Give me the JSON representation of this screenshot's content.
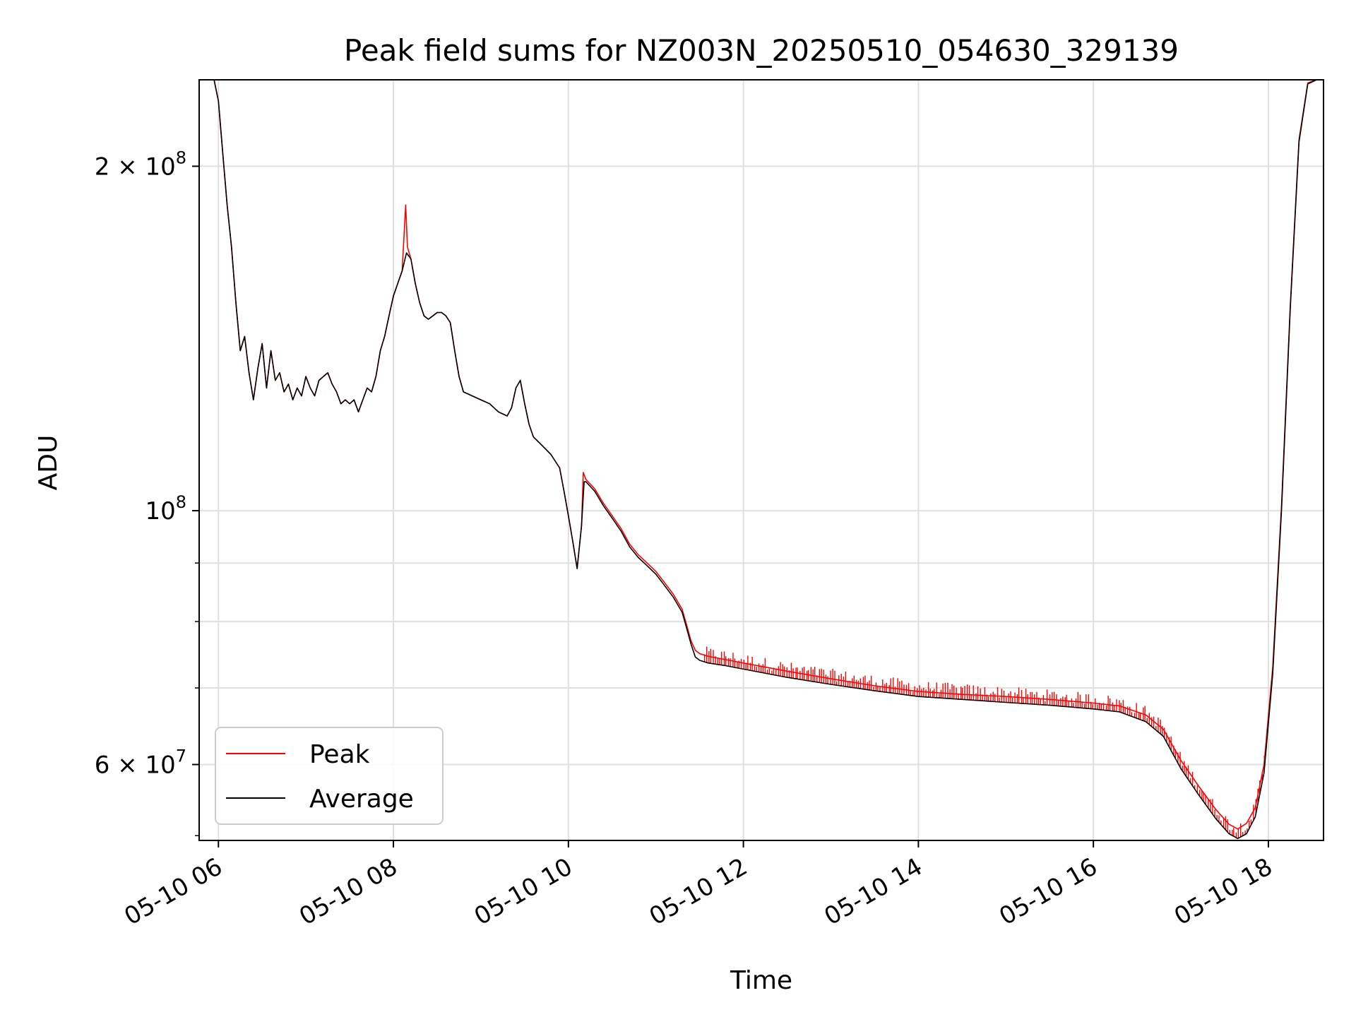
{
  "chart_data": {
    "type": "line",
    "title": "Peak field sums for NZ003N_20250510_054630_329139",
    "xlabel": "Time",
    "ylabel": "ADU",
    "yscale": "log",
    "ylim": [
      51500000,
      238000000
    ],
    "xlim": [
      5.78,
      18.63
    ],
    "grid": true,
    "legend_position": "lower-left",
    "x_ticks": [
      {
        "value": 6,
        "label": "05-10 06"
      },
      {
        "value": 8,
        "label": "05-10 08"
      },
      {
        "value": 10,
        "label": "05-10 10"
      },
      {
        "value": 12,
        "label": "05-10 12"
      },
      {
        "value": 14,
        "label": "05-10 14"
      },
      {
        "value": 16,
        "label": "05-10 16"
      },
      {
        "value": 18,
        "label": "05-10 18"
      }
    ],
    "y_major_ticks": [
      {
        "value": 200000000,
        "mantissa": "2",
        "times": "×",
        "base": "10",
        "exp": "8"
      },
      {
        "value": 100000000,
        "mantissa": "",
        "times": "",
        "base": "10",
        "exp": "8"
      },
      {
        "value": 60000000,
        "mantissa": "6",
        "times": "×",
        "base": "10",
        "exp": "7"
      }
    ],
    "y_minor_ticks": [
      70000000,
      80000000,
      90000000,
      52000000
    ],
    "series": [
      {
        "name": "Average",
        "color": "#000000",
        "points": [
          [
            5.78,
            238000000
          ],
          [
            5.95,
            238000000
          ],
          [
            6.0,
            228000000
          ],
          [
            6.05,
            205000000
          ],
          [
            6.1,
            185000000
          ],
          [
            6.15,
            170000000
          ],
          [
            6.2,
            152000000
          ],
          [
            6.25,
            138000000
          ],
          [
            6.3,
            142000000
          ],
          [
            6.35,
            132000000
          ],
          [
            6.4,
            125000000
          ],
          [
            6.45,
            133000000
          ],
          [
            6.5,
            140000000
          ],
          [
            6.55,
            128000000
          ],
          [
            6.6,
            138000000
          ],
          [
            6.65,
            130000000
          ],
          [
            6.7,
            132000000
          ],
          [
            6.75,
            127000000
          ],
          [
            6.8,
            129000000
          ],
          [
            6.85,
            125000000
          ],
          [
            6.9,
            128000000
          ],
          [
            6.95,
            126000000
          ],
          [
            7.0,
            131000000
          ],
          [
            7.05,
            128000000
          ],
          [
            7.1,
            126000000
          ],
          [
            7.15,
            130000000
          ],
          [
            7.2,
            131000000
          ],
          [
            7.25,
            132000000
          ],
          [
            7.3,
            129000000
          ],
          [
            7.35,
            127000000
          ],
          [
            7.4,
            124000000
          ],
          [
            7.45,
            125000000
          ],
          [
            7.5,
            124000000
          ],
          [
            7.55,
            125000000
          ],
          [
            7.6,
            122000000
          ],
          [
            7.65,
            125000000
          ],
          [
            7.7,
            128000000
          ],
          [
            7.75,
            127000000
          ],
          [
            7.8,
            131000000
          ],
          [
            7.85,
            138000000
          ],
          [
            7.9,
            142000000
          ],
          [
            7.95,
            148000000
          ],
          [
            8.0,
            154000000
          ],
          [
            8.05,
            158000000
          ],
          [
            8.1,
            162000000
          ],
          [
            8.15,
            168000000
          ],
          [
            8.2,
            166000000
          ],
          [
            8.25,
            158000000
          ],
          [
            8.3,
            152000000
          ],
          [
            8.35,
            148000000
          ],
          [
            8.4,
            147000000
          ],
          [
            8.45,
            148000000
          ],
          [
            8.5,
            149000000
          ],
          [
            8.55,
            149000000
          ],
          [
            8.6,
            148000000
          ],
          [
            8.65,
            146000000
          ],
          [
            8.7,
            138000000
          ],
          [
            8.75,
            131000000
          ],
          [
            8.8,
            127000000
          ],
          [
            8.9,
            126000000
          ],
          [
            9.0,
            125000000
          ],
          [
            9.1,
            124000000
          ],
          [
            9.2,
            122000000
          ],
          [
            9.3,
            121000000
          ],
          [
            9.35,
            123000000
          ],
          [
            9.4,
            128000000
          ],
          [
            9.45,
            130000000
          ],
          [
            9.5,
            124000000
          ],
          [
            9.55,
            119000000
          ],
          [
            9.6,
            116000000
          ],
          [
            9.7,
            114000000
          ],
          [
            9.8,
            112000000
          ],
          [
            9.9,
            109000000
          ],
          [
            9.95,
            104000000
          ],
          [
            10.0,
            99000000
          ],
          [
            10.05,
            94000000
          ],
          [
            10.1,
            89000000
          ],
          [
            10.15,
            97000000
          ],
          [
            10.18,
            106000000
          ],
          [
            10.2,
            106000000
          ],
          [
            10.3,
            104000000
          ],
          [
            10.4,
            101000000
          ],
          [
            10.5,
            98500000
          ],
          [
            10.6,
            96000000
          ],
          [
            10.7,
            93000000
          ],
          [
            10.8,
            91000000
          ],
          [
            10.9,
            89500000
          ],
          [
            11.0,
            88000000
          ],
          [
            11.1,
            86000000
          ],
          [
            11.2,
            84000000
          ],
          [
            11.3,
            81500000
          ],
          [
            11.35,
            79000000
          ],
          [
            11.4,
            76500000
          ],
          [
            11.45,
            74500000
          ],
          [
            11.5,
            74000000
          ],
          [
            11.6,
            73600000
          ],
          [
            11.8,
            73200000
          ],
          [
            12.0,
            72700000
          ],
          [
            12.5,
            71500000
          ],
          [
            13.0,
            70500000
          ],
          [
            13.5,
            69600000
          ],
          [
            14.0,
            68800000
          ],
          [
            14.5,
            68400000
          ],
          [
            15.0,
            68000000
          ],
          [
            15.5,
            67600000
          ],
          [
            16.0,
            67100000
          ],
          [
            16.3,
            66700000
          ],
          [
            16.6,
            65400000
          ],
          [
            16.8,
            63500000
          ],
          [
            17.0,
            59500000
          ],
          [
            17.2,
            56500000
          ],
          [
            17.4,
            53800000
          ],
          [
            17.55,
            52200000
          ],
          [
            17.65,
            51700000
          ],
          [
            17.75,
            52200000
          ],
          [
            17.85,
            54000000
          ],
          [
            17.95,
            59000000
          ],
          [
            18.05,
            72000000
          ],
          [
            18.15,
            100000000
          ],
          [
            18.25,
            150000000
          ],
          [
            18.35,
            210000000
          ],
          [
            18.45,
            236000000
          ],
          [
            18.55,
            238000000
          ],
          [
            18.63,
            238000000
          ]
        ]
      },
      {
        "name": "Peak",
        "color": "#ff0000",
        "points": [
          [
            5.78,
            238000000
          ],
          [
            5.95,
            238000000
          ],
          [
            6.0,
            228000000
          ],
          [
            6.05,
            205000000
          ],
          [
            6.1,
            185000000
          ],
          [
            6.15,
            170000000
          ],
          [
            6.2,
            152000000
          ],
          [
            6.25,
            138000000
          ],
          [
            6.3,
            142000000
          ],
          [
            6.35,
            132000000
          ],
          [
            6.4,
            125000000
          ],
          [
            6.45,
            133000000
          ],
          [
            6.5,
            140000000
          ],
          [
            6.55,
            128000000
          ],
          [
            6.6,
            138000000
          ],
          [
            6.65,
            130000000
          ],
          [
            6.7,
            132000000
          ],
          [
            6.75,
            127000000
          ],
          [
            6.8,
            129000000
          ],
          [
            6.85,
            125000000
          ],
          [
            6.9,
            128000000
          ],
          [
            6.95,
            126000000
          ],
          [
            7.0,
            131000000
          ],
          [
            7.05,
            128000000
          ],
          [
            7.1,
            126000000
          ],
          [
            7.15,
            130000000
          ],
          [
            7.2,
            131000000
          ],
          [
            7.25,
            132000000
          ],
          [
            7.3,
            129000000
          ],
          [
            7.35,
            127000000
          ],
          [
            7.4,
            124000000
          ],
          [
            7.45,
            125000000
          ],
          [
            7.5,
            124000000
          ],
          [
            7.55,
            125000000
          ],
          [
            7.6,
            122000000
          ],
          [
            7.65,
            125000000
          ],
          [
            7.7,
            128000000
          ],
          [
            7.75,
            127000000
          ],
          [
            7.8,
            131000000
          ],
          [
            7.85,
            138000000
          ],
          [
            7.9,
            142000000
          ],
          [
            7.95,
            148000000
          ],
          [
            8.0,
            154000000
          ],
          [
            8.05,
            158000000
          ],
          [
            8.1,
            162000000
          ],
          [
            8.14,
            185000000
          ],
          [
            8.16,
            170000000
          ],
          [
            8.2,
            166000000
          ],
          [
            8.25,
            158000000
          ],
          [
            8.3,
            152000000
          ],
          [
            8.35,
            148000000
          ],
          [
            8.4,
            147000000
          ],
          [
            8.45,
            148000000
          ],
          [
            8.5,
            149000000
          ],
          [
            8.55,
            149000000
          ],
          [
            8.6,
            148000000
          ],
          [
            8.65,
            146000000
          ],
          [
            8.7,
            138000000
          ],
          [
            8.75,
            131000000
          ],
          [
            8.8,
            127000000
          ],
          [
            8.9,
            126000000
          ],
          [
            9.0,
            125000000
          ],
          [
            9.1,
            124000000
          ],
          [
            9.2,
            122000000
          ],
          [
            9.3,
            121000000
          ],
          [
            9.35,
            123000000
          ],
          [
            9.4,
            128000000
          ],
          [
            9.45,
            130000000
          ],
          [
            9.5,
            124000000
          ],
          [
            9.55,
            119000000
          ],
          [
            9.6,
            116000000
          ],
          [
            9.7,
            114000000
          ],
          [
            9.8,
            112000000
          ],
          [
            9.9,
            109000000
          ],
          [
            9.95,
            104000000
          ],
          [
            10.0,
            99000000
          ],
          [
            10.05,
            94000000
          ],
          [
            10.1,
            89000000
          ],
          [
            10.15,
            97000000
          ],
          [
            10.17,
            108000000
          ],
          [
            10.2,
            106500000
          ],
          [
            10.3,
            104500000
          ],
          [
            10.4,
            101500000
          ],
          [
            10.5,
            99000000
          ],
          [
            10.6,
            96500000
          ],
          [
            10.7,
            93500000
          ],
          [
            10.8,
            91500000
          ],
          [
            10.9,
            90000000
          ],
          [
            11.0,
            88500000
          ],
          [
            11.1,
            86500000
          ],
          [
            11.2,
            84500000
          ],
          [
            11.3,
            82000000
          ],
          [
            11.35,
            79500000
          ],
          [
            11.4,
            77000000
          ],
          [
            11.45,
            75500000
          ],
          [
            11.5,
            75000000
          ],
          [
            11.6,
            74600000
          ],
          [
            11.8,
            74100000
          ],
          [
            12.0,
            73600000
          ],
          [
            12.5,
            72400000
          ],
          [
            13.0,
            71300000
          ],
          [
            13.5,
            70300000
          ],
          [
            14.0,
            69500000
          ],
          [
            14.5,
            69100000
          ],
          [
            15.0,
            68800000
          ],
          [
            15.5,
            68400000
          ],
          [
            16.0,
            67900000
          ],
          [
            16.3,
            67500000
          ],
          [
            16.6,
            66300000
          ],
          [
            16.8,
            64400000
          ],
          [
            17.0,
            60500000
          ],
          [
            17.2,
            57500000
          ],
          [
            17.4,
            54800000
          ],
          [
            17.55,
            53200000
          ],
          [
            17.65,
            52700000
          ],
          [
            17.75,
            53300000
          ],
          [
            17.85,
            55000000
          ],
          [
            17.95,
            60000000
          ],
          [
            18.05,
            73000000
          ],
          [
            18.15,
            101000000
          ],
          [
            18.25,
            151000000
          ],
          [
            18.35,
            211000000
          ],
          [
            18.45,
            236500000
          ],
          [
            18.55,
            238000000
          ],
          [
            18.63,
            238000000
          ]
        ]
      }
    ],
    "peak_noise": {
      "x_start": 11.55,
      "x_end": 18.0,
      "count": 260,
      "spread": 0.025
    }
  },
  "legend": {
    "items": [
      {
        "label": "Peak",
        "color": "#ff0000"
      },
      {
        "label": "Average",
        "color": "#000000"
      }
    ]
  }
}
